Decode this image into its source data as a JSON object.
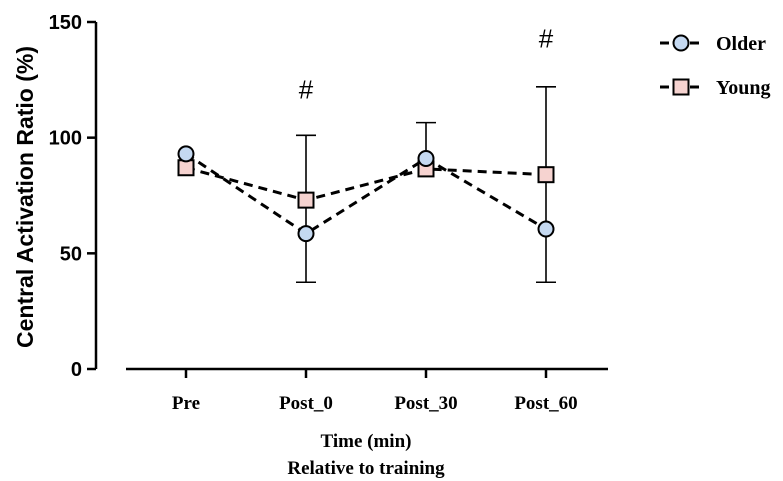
{
  "chart_data": {
    "type": "line",
    "categories": [
      "Pre",
      "Post_0",
      "Post_30",
      "Post_60"
    ],
    "series": [
      {
        "name": "Older",
        "marker": "circle",
        "fill": "#c5d9f1",
        "values": [
          93,
          58.5,
          91,
          60.5
        ],
        "error_upper": [
          null,
          101,
          106.5,
          122
        ],
        "error_lower": [
          null,
          37.5,
          null,
          37.5
        ]
      },
      {
        "name": "Young",
        "marker": "square",
        "fill": "#f6d3d0",
        "values": [
          87,
          73,
          86.5,
          84
        ],
        "error_upper": [
          null,
          null,
          null,
          null
        ],
        "error_lower": [
          null,
          null,
          null,
          null
        ]
      }
    ],
    "annotations": [
      {
        "category": "Post_0",
        "text": "#",
        "y": 117
      },
      {
        "category": "Post_60",
        "text": "#",
        "y": 139
      }
    ],
    "ylim": [
      0,
      150
    ],
    "yticks": [
      "0",
      "50",
      "100",
      "150"
    ],
    "ylabel": "Central Activation Ratio (%)",
    "xlabel_line1": "Time (min)",
    "xlabel_line2": "Relative to training",
    "legend_position": "top-right",
    "line_style": "dashed",
    "grid": false
  }
}
